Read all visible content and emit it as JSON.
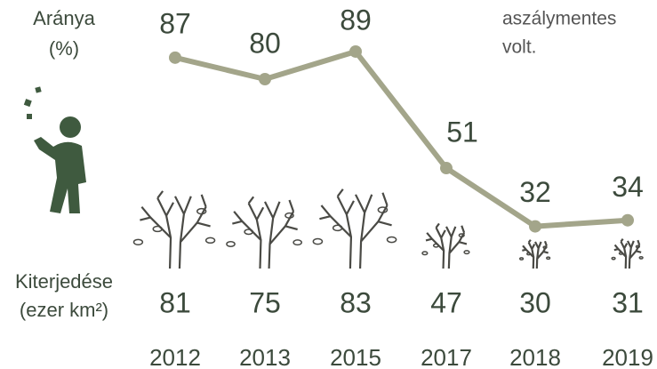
{
  "chart_data": {
    "type": "line",
    "rate_label": [
      "Aránya",
      "(%)"
    ],
    "extent_label": [
      "Kiterjedése",
      "(ezer km²)"
    ],
    "annotation": [
      "aszálymentes",
      "volt."
    ],
    "categories": [
      "2012",
      "2013",
      "2015",
      "2017",
      "2018",
      "2019"
    ],
    "values": [
      87,
      80,
      89,
      51,
      32,
      34
    ],
    "color": "#a3a58a",
    "extent_values": [
      81,
      75,
      83,
      47,
      30,
      31
    ],
    "extent_color": "#4a4a45"
  }
}
